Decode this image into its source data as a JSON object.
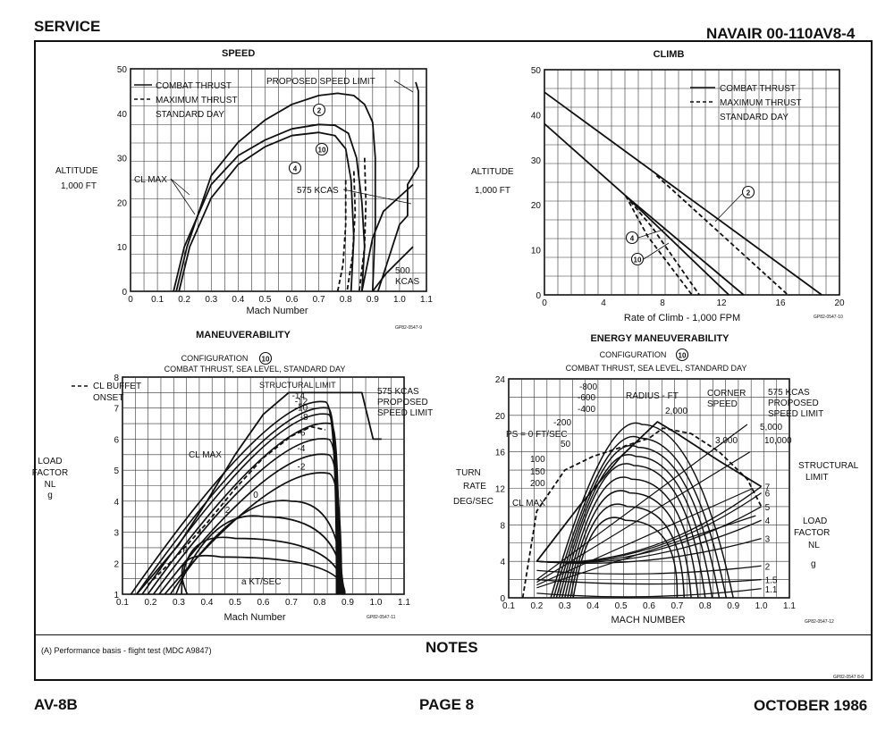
{
  "header": {
    "left": "SERVICE",
    "right": "NAVAIR 00-110AV8-4"
  },
  "footer": {
    "left": "AV-8B",
    "center": "PAGE 8",
    "right": "OCTOBER 1986"
  },
  "notes": {
    "title": "NOTES",
    "text": "(A) Performance basis - flight test (MDC A9847)",
    "code": "GP82-0547 8-0"
  },
  "chart_data": [
    {
      "id": "speed",
      "type": "line",
      "title": "SPEED",
      "xlabel": "Mach Number",
      "ylabel": [
        "ALTITUDE",
        "1,000 FT"
      ],
      "xlim": [
        0,
        1.1
      ],
      "ylim": [
        0,
        50
      ],
      "xticks": [
        "0",
        "0.1",
        "0.2",
        "0.3",
        "0.4",
        "0.5",
        "0.6",
        "0.7",
        "0.8",
        "0.9",
        "1.0",
        "1.1"
      ],
      "yticks": [
        "0",
        "10",
        "20",
        "30",
        "40",
        "50"
      ],
      "legend": [
        "COMBAT THRUST",
        "MAXIMUM THRUST",
        "STANDARD DAY"
      ],
      "annotations": [
        "PROPOSED  SPEED LIMIT",
        "CL MAX",
        "575 KCAS",
        "500 KCAS",
        "2",
        "4",
        "10"
      ],
      "code": "GP82-0547-9",
      "series": [
        {
          "name": "Config 2 combat thrust",
          "style": "solid",
          "x": [
            0.17,
            0.21,
            0.3,
            0.4,
            0.5,
            0.6,
            0.7,
            0.77,
            0.83,
            0.87,
            0.9,
            0.91,
            0.91,
            0.9
          ],
          "y": [
            0,
            10,
            26,
            33.5,
            38.5,
            42,
            44,
            44.5,
            44,
            42,
            38,
            30,
            15,
            0
          ]
        },
        {
          "name": "Config 10 combat thrust",
          "style": "solid",
          "x": [
            0.16,
            0.2,
            0.3,
            0.4,
            0.5,
            0.6,
            0.7,
            0.76,
            0.81,
            0.84,
            0.86,
            0.87,
            0.86
          ],
          "y": [
            0,
            10,
            24,
            30.5,
            34,
            36.5,
            37.5,
            37.3,
            35.5,
            30,
            20,
            10,
            0
          ]
        },
        {
          "name": "Config 4 combat thrust",
          "style": "solid",
          "x": [
            0.18,
            0.22,
            0.3,
            0.4,
            0.5,
            0.6,
            0.7,
            0.76,
            0.8,
            0.82,
            0.83,
            0.82
          ],
          "y": [
            0,
            10,
            21,
            28.5,
            32.5,
            35,
            35.7,
            35,
            32,
            25,
            12,
            0
          ]
        },
        {
          "name": "Config 2 maximum thrust",
          "style": "dashed",
          "x": [
            0.87,
            0.875,
            0.87,
            0.85
          ],
          "y": [
            30,
            20,
            10,
            0
          ]
        },
        {
          "name": "Config 10 maximum thrust",
          "style": "dashed",
          "x": [
            0.83,
            0.835,
            0.825,
            0.805
          ],
          "y": [
            27,
            18,
            8,
            0
          ]
        },
        {
          "name": "Config 4 maximum thrust",
          "style": "dashed",
          "x": [
            0.8,
            0.8,
            0.79,
            0.77
          ],
          "y": [
            25,
            15,
            6,
            0
          ]
        },
        {
          "name": "575 KCAS",
          "style": "solid",
          "x": [
            0.86,
            0.88,
            0.9,
            0.94,
            1.05
          ],
          "y": [
            0,
            6,
            12,
            18,
            24
          ]
        },
        {
          "name": "500 KCAS",
          "style": "solid",
          "x": [
            0.9,
            0.95,
            1.0,
            1.05
          ],
          "y": [
            0,
            4,
            7,
            10
          ]
        },
        {
          "name": "Proposed speed limit",
          "style": "solid",
          "x": [
            0.92,
            1.0,
            1.03,
            1.03,
            1.07,
            1.07,
            1.06
          ],
          "y": [
            0,
            15,
            17,
            24,
            28,
            45,
            47
          ]
        }
      ]
    },
    {
      "id": "climb",
      "type": "line",
      "title": "CLIMB",
      "xlabel": "Rate of Climb - 1,000 FPM",
      "ylabel": [
        "ALTITUDE",
        "1,000 FT"
      ],
      "xlim": [
        0,
        20
      ],
      "ylim": [
        0,
        50
      ],
      "xticks": [
        "0",
        "4",
        "8",
        "12",
        "16",
        "20"
      ],
      "yticks": [
        "0",
        "10",
        "20",
        "30",
        "40",
        "50"
      ],
      "legend": [
        "COMBAT THRUST",
        "MAXIMUM THRUST",
        "STANDARD DAY"
      ],
      "annotations": [
        "2",
        "4",
        "10"
      ],
      "code": "GP82-0547-10",
      "series": [
        {
          "name": "Config 2 combat thrust",
          "style": "solid",
          "x": [
            0,
            18.8
          ],
          "y": [
            45,
            0
          ]
        },
        {
          "name": "Config 2 maximum thrust",
          "style": "dashed",
          "x": [
            7.6,
            16.5
          ],
          "y": [
            26.5,
            0
          ]
        },
        {
          "name": "Config 10 combat thrust",
          "style": "solid",
          "x": [
            0,
            5.5,
            13.5
          ],
          "y": [
            38,
            22,
            0
          ]
        },
        {
          "name": "Config 4 combat thrust",
          "style": "solid",
          "x": [
            5.5,
            12.5
          ],
          "y": [
            22,
            0
          ]
        },
        {
          "name": "Config 10 maximum thrust",
          "style": "dashed",
          "x": [
            5.5,
            7.3,
            10.5
          ],
          "y": [
            22,
            15,
            0
          ]
        },
        {
          "name": "Config 4 maximum thrust",
          "style": "dashed",
          "x": [
            5.5,
            7.0,
            10
          ],
          "y": [
            22,
            13,
            0
          ]
        }
      ]
    },
    {
      "id": "maneuverability",
      "type": "line",
      "title": "MANEUVERABILITY",
      "subtitle": [
        "CONFIGURATION",
        "10",
        "COMBAT THRUST, SEA LEVEL, STANDARD DAY"
      ],
      "xlabel": "Mach Number",
      "ylabel": [
        "LOAD",
        "FACTOR",
        "NL",
        "g"
      ],
      "xlim": [
        0.1,
        1.1
      ],
      "ylim": [
        1,
        8
      ],
      "xticks": [
        "0.1",
        "0.2",
        "0.3",
        "0.4",
        "0.5",
        "0.6",
        "0.7",
        "0.8",
        "0.9",
        "1.0",
        "1.1"
      ],
      "yticks": [
        "1",
        "2",
        "3",
        "4",
        "5",
        "6",
        "7",
        "8"
      ],
      "legend": [
        "CL BUFFET",
        "ONSET"
      ],
      "annotations": [
        "STRUCTURAL LIMIT",
        "575 KCAS",
        "PROPOSED",
        "SPEED LIMIT",
        "CL MAX",
        "a KT/SEC"
      ],
      "code": "GP82-0547-11",
      "series": [
        {
          "name": "CL MAX / structural limit",
          "style": "solid",
          "x": [
            0.15,
            0.3,
            0.4,
            0.5,
            0.6,
            0.69,
            0.85,
            0.95,
            0.99,
            1.02
          ],
          "y": [
            1,
            2.6,
            4.0,
            5.5,
            6.8,
            7.5,
            7.5,
            7.5,
            6.0,
            6.0
          ]
        },
        {
          "name": "CL buffet onset",
          "style": "dashed",
          "x": [
            0.19,
            0.3,
            0.4,
            0.5,
            0.6,
            0.7,
            0.77,
            0.82
          ],
          "y": [
            1.3,
            2.3,
            3.3,
            4.4,
            5.4,
            6.1,
            6.4,
            6.3
          ]
        }
      ],
      "contours": [
        {
          "label": "-14",
          "peak_x": 0.82,
          "peak_y": 7.2
        },
        {
          "label": "-12",
          "peak_x": 0.83,
          "peak_y": 7.0
        },
        {
          "label": "-10",
          "peak_x": 0.83,
          "peak_y": 6.8
        },
        {
          "label": "-8",
          "peak_x": 0.84,
          "peak_y": 6.5
        },
        {
          "label": "-6",
          "peak_x": 0.83,
          "peak_y": 6.0
        },
        {
          "label": "-4",
          "peak_x": 0.83,
          "peak_y": 5.5
        },
        {
          "label": "-2",
          "peak_x": 0.83,
          "peak_y": 4.9
        },
        {
          "label": "0",
          "peak_x": 0.7,
          "peak_y": 4.0
        },
        {
          "label": "2",
          "peak_x": 0.6,
          "peak_y": 3.5
        },
        {
          "label": "4",
          "peak_x": 0.5,
          "peak_y": 2.8
        },
        {
          "label": "6",
          "peak_x": 0.45,
          "peak_y": 2.2
        }
      ]
    },
    {
      "id": "energy",
      "type": "line",
      "title": "ENERGY MANEUVERABILITY",
      "subtitle": [
        "CONFIGURATION",
        "10",
        "COMBAT THRUST, SEA LEVEL, STANDARD DAY"
      ],
      "xlabel": "MACH NUMBER",
      "ylabel": [
        "TURN",
        "RATE",
        "DEG/SEC"
      ],
      "xlim": [
        0.1,
        1.1
      ],
      "ylim": [
        0,
        24
      ],
      "xticks": [
        "0.1",
        "0.2",
        "0.3",
        "0.4",
        "0.5",
        "0.6",
        "0.7",
        "0.8",
        "0.9",
        "1.0",
        "1.1"
      ],
      "yticks": [
        "0",
        "4",
        "8",
        "12",
        "16",
        "20",
        "24"
      ],
      "annotations": [
        "RADIUS - FT",
        "CORNER",
        "SPEED",
        "575 KCAS",
        "PROPOSED",
        "SPEED LIMIT",
        "STRUCTURAL",
        "LIMIT",
        "LOAD",
        "FACTOR",
        "NL",
        "g",
        "CL MAX",
        "PS = 0 FT/SEC",
        "-800",
        "-600",
        "-400",
        "-200",
        "50",
        "100",
        "150",
        "200",
        "2,000",
        "3,000",
        "5,000",
        "10,000",
        "7",
        "6",
        "5",
        "4",
        "3",
        "2",
        "1.5",
        "1.1"
      ],
      "code": "GP82-0547-12",
      "series": [
        {
          "name": "CL MAX",
          "style": "dashed",
          "x": [
            0.15,
            0.2,
            0.3,
            0.4,
            0.5,
            0.6,
            0.65,
            0.75,
            0.85,
            0.95,
            1.0
          ],
          "y": [
            0,
            9.5,
            14,
            15.5,
            16.5,
            17.5,
            18.6,
            18,
            16,
            13,
            10
          ]
        },
        {
          "name": "Structural limit",
          "style": "solid",
          "x": [
            0.2,
            0.35,
            0.5,
            0.63,
            0.7,
            0.85,
            1.0
          ],
          "y": [
            4,
            10,
            15.5,
            19.3,
            18,
            15,
            12.2
          ]
        }
      ],
      "load_factor_lines": [
        "1.1",
        "1.5",
        "2",
        "3",
        "4",
        "5",
        "6",
        "7"
      ],
      "ps_contours": [
        "-800",
        "-600",
        "-400",
        "-200",
        "0",
        "50",
        "100",
        "150",
        "200"
      ],
      "radius_lines": [
        "2,000",
        "3,000",
        "5,000",
        "10,000"
      ]
    }
  ]
}
